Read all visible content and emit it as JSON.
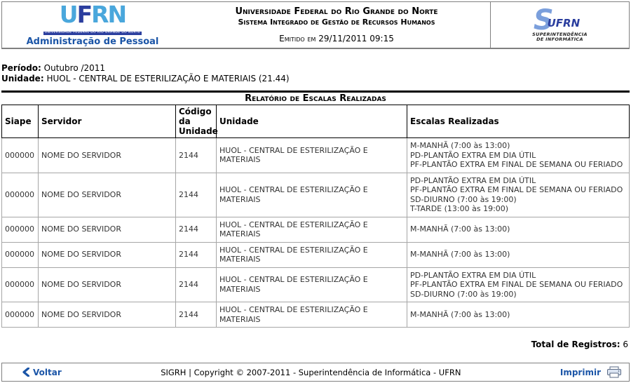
{
  "header": {
    "left_logo": {
      "brand_u": "U",
      "brand_f": "F",
      "brand_rn": "RN",
      "banner": "UNIVERSIDADE FEDERAL DO RIO GRANDE DO NORTE",
      "link": "Administração de Pessoal"
    },
    "center": {
      "line1": "Universidade Federal do Rio Grande do Norte",
      "line2": "Sistema Integrado de Gestão de Recursos Humanos",
      "emitted": "Emitido em 29/11/2011 09:15"
    },
    "right_logo": {
      "brand_s": "S",
      "brand_text": "UFRN",
      "caption_line1": "SUPERINTENDÊNCIA",
      "caption_line2": "DE INFORMÁTICA"
    }
  },
  "meta": {
    "period_label": "Período:",
    "period_value": "Outubro /2011",
    "unit_label": "Unidade:",
    "unit_value": "HUOL - CENTRAL DE ESTERILIZAÇÃO E MATERIAIS (21.44)"
  },
  "report": {
    "title": "Relatório de Escalas Realizadas",
    "columns": [
      "Siape",
      "Servidor",
      "Código da Unidade",
      "Unidade",
      "Escalas Realizadas"
    ],
    "rows": [
      {
        "siape": "000000",
        "servidor": "NOME DO SERVIDOR",
        "codigo": "2144",
        "unidade": "HUOL - CENTRAL DE ESTERILIZAÇÃO E MATERIAIS",
        "escalas": [
          "M-MANHÃ (7:00 às 13:00)",
          "PD-PLANTÃO EXTRA EM DIA ÚTIL",
          "PF-PLANTÃO EXTRA EM FINAL DE SEMANA OU FERIADO"
        ]
      },
      {
        "siape": "000000",
        "servidor": "NOME DO SERVIDOR",
        "codigo": "2144",
        "unidade": "HUOL - CENTRAL DE ESTERILIZAÇÃO E MATERIAIS",
        "escalas": [
          "PD-PLANTÃO EXTRA EM DIA ÚTIL",
          "PF-PLANTÃO EXTRA EM FINAL DE SEMANA OU FERIADO",
          "SD-DIURNO (7:00 às 19:00)",
          "T-TARDE (13:00 às 19:00)"
        ]
      },
      {
        "siape": "000000",
        "servidor": "NOME DO SERVIDOR",
        "codigo": "2144",
        "unidade": "HUOL - CENTRAL DE ESTERILIZAÇÃO E MATERIAIS",
        "escalas": [
          "M-MANHÃ (7:00 às 13:00)"
        ]
      },
      {
        "siape": "000000",
        "servidor": "NOME DO SERVIDOR",
        "codigo": "2144",
        "unidade": "HUOL - CENTRAL DE ESTERILIZAÇÃO E MATERIAIS",
        "escalas": [
          "M-MANHÃ (7:00 às 13:00)"
        ]
      },
      {
        "siape": "000000",
        "servidor": "NOME DO SERVIDOR",
        "codigo": "2144",
        "unidade": "HUOL - CENTRAL DE ESTERILIZAÇÃO E MATERIAIS",
        "escalas": [
          "PD-PLANTÃO EXTRA EM DIA ÚTIL",
          "PF-PLANTÃO EXTRA EM FINAL DE SEMANA OU FERIADO",
          "SD-DIURNO (7:00 às 19:00)"
        ]
      },
      {
        "siape": "000000",
        "servidor": "NOME DO SERVIDOR",
        "codigo": "2144",
        "unidade": "HUOL - CENTRAL DE ESTERILIZAÇÃO E MATERIAIS",
        "escalas": [
          "M-MANHÃ (7:00 às 13:00)"
        ]
      }
    ],
    "total_label": "Total de Registros:",
    "total_value": "6"
  },
  "footer": {
    "back_label": "Voltar",
    "copyright": "SIGRH | Copyright © 2007-2011 - Superintendência de Informática - UFRN",
    "print_label": "Imprimir"
  },
  "colors": {
    "link_blue": "#1b55a7",
    "logo_light_blue": "#4aa7dc",
    "logo_dark_blue": "#2b3e9e",
    "si_blue": "#7b9fdc",
    "border_gray": "#808080",
    "table_border": "#a6a6a6"
  }
}
